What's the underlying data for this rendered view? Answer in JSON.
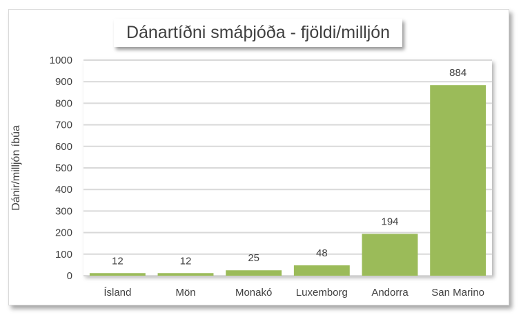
{
  "chart_data": {
    "type": "bar",
    "title": "Dánartíðni smáþjóða - fjöldi/milljón",
    "xlabel": "",
    "ylabel": "Dánir/milljón íbúa",
    "categories": [
      "Ísland",
      "Mön",
      "Monakó",
      "Luxemborg",
      "Andorra",
      "San Marino"
    ],
    "values": [
      12,
      12,
      25,
      48,
      194,
      884
    ],
    "ylim": [
      0,
      1000
    ],
    "yticks": [
      0,
      100,
      200,
      300,
      400,
      500,
      600,
      700,
      800,
      900,
      1000
    ],
    "grid": true,
    "legend": "none",
    "bar_color": "#9BBB59",
    "data_labels": true
  }
}
